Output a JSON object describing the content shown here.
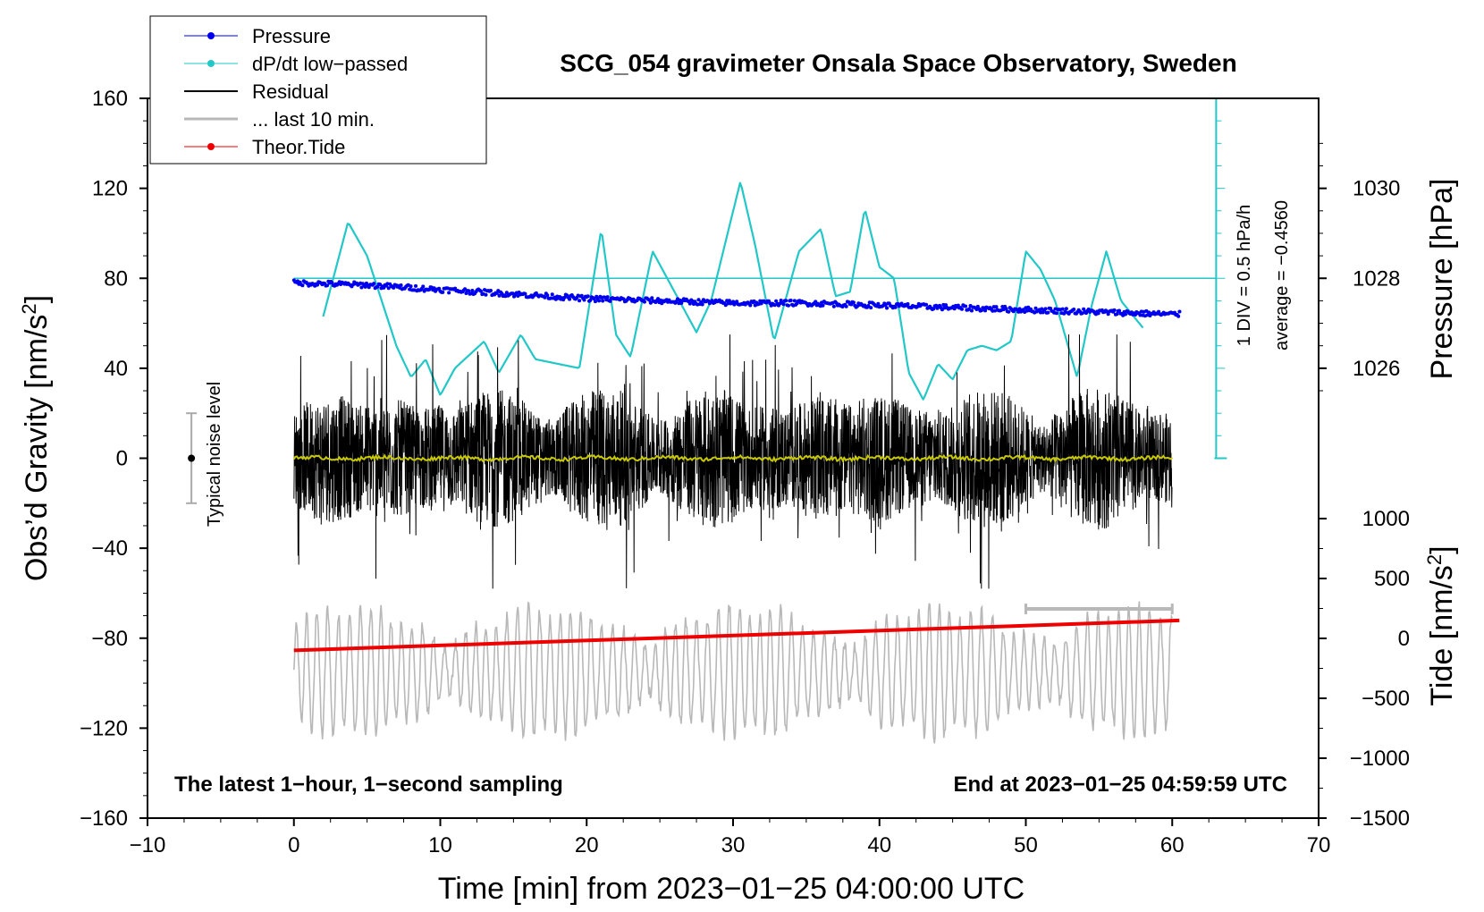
{
  "chart_data": {
    "type": "line",
    "title": "SCG_054 gravimeter Onsala Space Observatory, Sweden",
    "xlabel": "Time [min] from 2023−01−25 04:00:00 UTC",
    "ylabel_left_main": "Obs’d Gravity [nm/s",
    "ylabel_left_sup": "2",
    "ylabel_left_tail": "]",
    "ylabel_right_pressure": "Pressure [hPa]",
    "ylabel_right_tide_main": "Tide [nm/s",
    "ylabel_right_tide_sup": "2",
    "ylabel_right_tide_tail": "]",
    "xlim": [
      -10,
      70
    ],
    "ylim": [
      -160,
      160
    ],
    "x_ticks": [
      "−10",
      "0",
      "10",
      "20",
      "30",
      "40",
      "50",
      "60",
      "70"
    ],
    "y_ticks": [
      "−160",
      "−120",
      "−80",
      "−40",
      "0",
      "40",
      "80",
      "120",
      "160"
    ],
    "pressure_ticks": [
      "1026",
      "1028",
      "1030"
    ],
    "pressure_tick_values": [
      1026,
      1028,
      1030
    ],
    "tide_ticks": [
      "−1500",
      "−1000",
      "−500",
      "0",
      "500",
      "1000"
    ],
    "tide_tick_values": [
      -1500,
      -1000,
      -500,
      0,
      500,
      1000
    ],
    "legend": [
      "Pressure",
      "dP/dt low−passed",
      "Residual",
      "... last 10 min.",
      "Theor.Tide"
    ],
    "legend_placement": "top-left",
    "colors": {
      "pressure": "#0000ee",
      "dpdt": "#22c7c7",
      "residual": "#000000",
      "last10": "#b8b8b8",
      "tide": "#ee0000",
      "mean": "#c8c800"
    },
    "series": [
      {
        "name": "Pressure",
        "unit": "hPa",
        "x": [
          0,
          5,
          10,
          15,
          20,
          25,
          30,
          35,
          40,
          45,
          50,
          55,
          60
        ],
        "values": [
          1027.9,
          1027.85,
          1027.75,
          1027.65,
          1027.55,
          1027.5,
          1027.45,
          1027.45,
          1027.4,
          1027.35,
          1027.3,
          1027.25,
          1027.2
        ]
      },
      {
        "name": "dP/dt low−passed",
        "unit": "nm/s2 scale",
        "x": [
          2,
          3.7,
          5,
          7,
          8,
          9,
          10,
          11,
          13,
          14,
          15.5,
          16.5,
          18,
          19.5,
          21,
          22,
          23,
          24.5,
          25.5,
          27.5,
          28.5,
          30.5,
          31.5,
          32.8,
          34.5,
          36,
          37,
          38,
          39,
          40,
          41,
          42,
          43,
          44,
          45,
          46,
          47,
          48,
          49,
          50,
          51,
          52,
          53.5,
          54.5,
          55.5,
          56.5,
          58
        ],
        "values": [
          63,
          105,
          90,
          50,
          36,
          44,
          28,
          40,
          52,
          38,
          55,
          44,
          42,
          40,
          102,
          55,
          45,
          92,
          80,
          56,
          70,
          123,
          95,
          52,
          92,
          102,
          72,
          74,
          111,
          85,
          80,
          38,
          26,
          42,
          35,
          48,
          50,
          48,
          52,
          92,
          84,
          70,
          36,
          68,
          92,
          70,
          58
        ]
      },
      {
        "name": "Residual",
        "unit": "nm/s2",
        "x": [
          0,
          60
        ],
        "values": [
          0,
          0
        ]
      },
      {
        "name": "... last 10 min.",
        "unit": "nm/s2",
        "x": [
          0,
          60
        ],
        "values": [
          -95,
          -95
        ]
      },
      {
        "name": "Theor.Tide",
        "unit": "nm/s2",
        "x": [
          0,
          60
        ],
        "values": [
          -100,
          150
        ]
      }
    ],
    "annotations": {
      "noise_label": "Typical noise level",
      "dpdt_scale": "1 DIV = 0.5 hPa/h",
      "average": "average = −0.4560",
      "bottom_left": "The latest 1−hour, 1−second sampling",
      "bottom_right": "End at 2023−01−25 04:59:59 UTC"
    }
  }
}
